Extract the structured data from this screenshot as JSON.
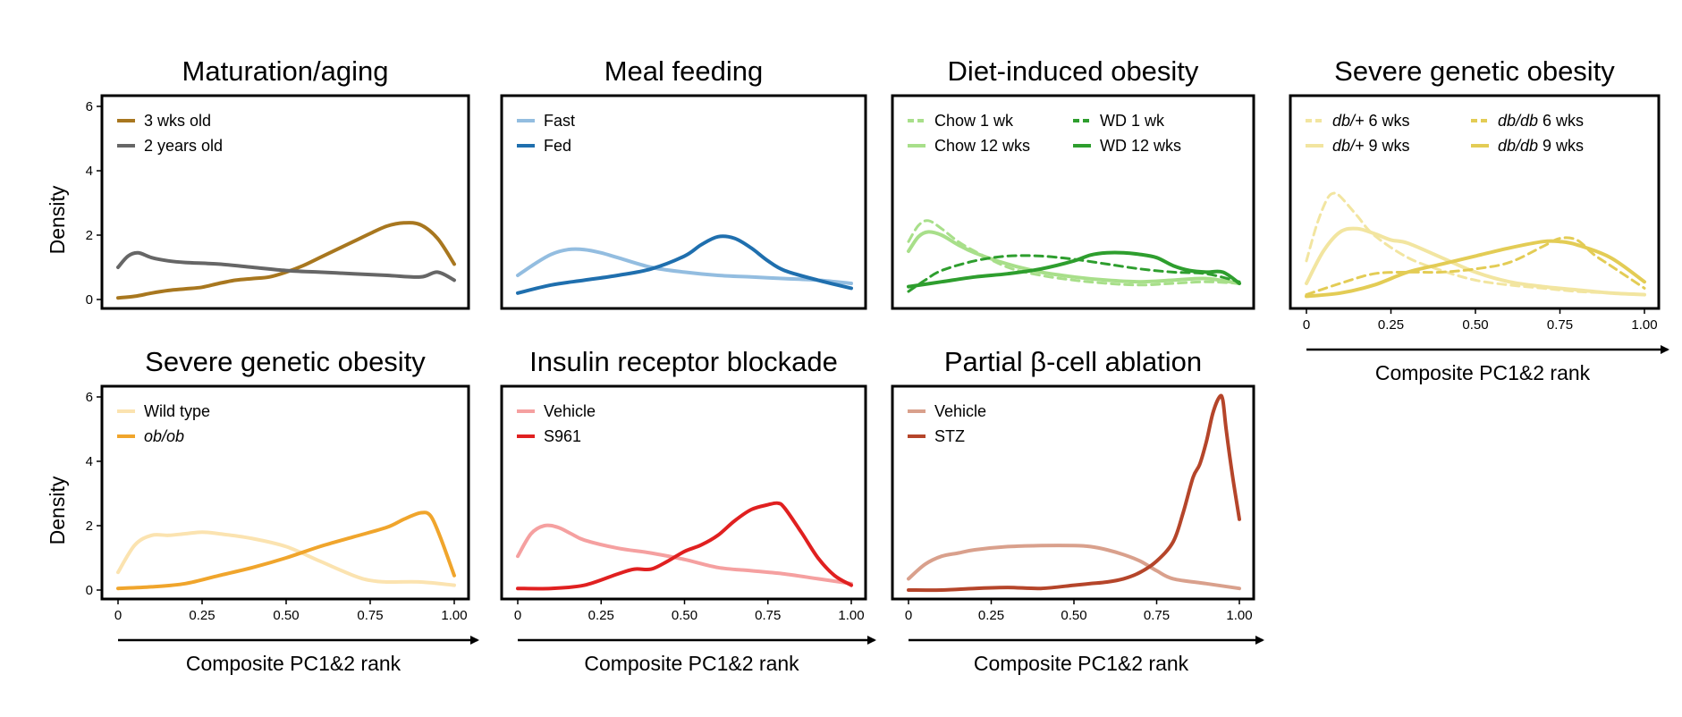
{
  "chart_data": [
    {
      "type": "line",
      "title": "Maturation/aging",
      "ylabel": "Density",
      "xlabel": "",
      "xlim": [
        0,
        1
      ],
      "ylim": [
        0,
        6
      ],
      "yticks": [
        "0",
        "2",
        "4",
        "6"
      ],
      "xticks": [],
      "legend_columns": 1,
      "series": [
        {
          "name": "3 wks old",
          "color": "#a8771f",
          "dashed": false,
          "lineWidth": 4,
          "x": [
            0,
            0.05,
            0.1,
            0.15,
            0.2,
            0.25,
            0.3,
            0.35,
            0.4,
            0.45,
            0.5,
            0.55,
            0.6,
            0.65,
            0.7,
            0.75,
            0.8,
            0.85,
            0.9,
            0.95,
            1.0
          ],
          "y": [
            0.05,
            0.1,
            0.2,
            0.28,
            0.33,
            0.38,
            0.5,
            0.6,
            0.65,
            0.7,
            0.85,
            1.05,
            1.3,
            1.55,
            1.8,
            2.05,
            2.28,
            2.38,
            2.32,
            1.9,
            1.1
          ]
        },
        {
          "name": "2 years old",
          "color": "#666666",
          "dashed": false,
          "lineWidth": 4,
          "x": [
            0,
            0.03,
            0.06,
            0.1,
            0.15,
            0.2,
            0.3,
            0.4,
            0.5,
            0.6,
            0.7,
            0.8,
            0.9,
            0.95,
            1.0
          ],
          "y": [
            1.0,
            1.35,
            1.45,
            1.3,
            1.2,
            1.15,
            1.1,
            1.0,
            0.9,
            0.85,
            0.8,
            0.75,
            0.7,
            0.85,
            0.6
          ]
        }
      ]
    },
    {
      "type": "line",
      "title": "Meal feeding",
      "ylabel": "",
      "xlabel": "",
      "xlim": [
        0,
        1
      ],
      "ylim": [
        0,
        6
      ],
      "yticks": [],
      "xticks": [],
      "legend_columns": 1,
      "series": [
        {
          "name": "Fast",
          "color": "#93bde0",
          "dashed": false,
          "lineWidth": 4,
          "x": [
            0,
            0.05,
            0.1,
            0.15,
            0.2,
            0.25,
            0.3,
            0.4,
            0.5,
            0.6,
            0.7,
            0.8,
            0.9,
            1.0
          ],
          "y": [
            0.75,
            1.1,
            1.4,
            1.55,
            1.55,
            1.45,
            1.3,
            1.0,
            0.85,
            0.75,
            0.7,
            0.65,
            0.6,
            0.5
          ]
        },
        {
          "name": "Fed",
          "color": "#1f6fae",
          "dashed": false,
          "lineWidth": 4,
          "x": [
            0,
            0.1,
            0.2,
            0.3,
            0.4,
            0.5,
            0.55,
            0.6,
            0.65,
            0.7,
            0.75,
            0.8,
            0.9,
            1.0
          ],
          "y": [
            0.2,
            0.45,
            0.6,
            0.75,
            0.95,
            1.35,
            1.7,
            1.95,
            1.9,
            1.6,
            1.2,
            0.9,
            0.6,
            0.35
          ]
        }
      ]
    },
    {
      "type": "line",
      "title": "Diet-induced obesity",
      "ylabel": "",
      "xlabel": "",
      "xlim": [
        0,
        1
      ],
      "ylim": [
        0,
        6
      ],
      "yticks": [],
      "xticks": [],
      "legend_columns": 2,
      "series": [
        {
          "name": "Chow 1 wk",
          "color": "#a8df8a",
          "dashed": true,
          "lineWidth": 3,
          "x": [
            0,
            0.03,
            0.06,
            0.1,
            0.15,
            0.2,
            0.3,
            0.4,
            0.5,
            0.6,
            0.7,
            0.8,
            0.9,
            1.0
          ],
          "y": [
            1.8,
            2.3,
            2.45,
            2.2,
            1.8,
            1.5,
            1.0,
            0.75,
            0.6,
            0.5,
            0.45,
            0.5,
            0.55,
            0.5
          ]
        },
        {
          "name": "Chow 12 wks",
          "color": "#a8df8a",
          "dashed": false,
          "lineWidth": 4,
          "x": [
            0,
            0.03,
            0.06,
            0.1,
            0.15,
            0.2,
            0.3,
            0.4,
            0.5,
            0.6,
            0.7,
            0.8,
            0.9,
            1.0
          ],
          "y": [
            1.5,
            1.95,
            2.1,
            2.0,
            1.7,
            1.45,
            1.1,
            0.85,
            0.7,
            0.6,
            0.55,
            0.6,
            0.65,
            0.5
          ]
        },
        {
          "name": "WD 1 wk",
          "color": "#2e9e2e",
          "dashed": true,
          "lineWidth": 3,
          "x": [
            0,
            0.05,
            0.1,
            0.2,
            0.3,
            0.4,
            0.5,
            0.6,
            0.7,
            0.8,
            0.9,
            1.0
          ],
          "y": [
            0.25,
            0.6,
            0.9,
            1.2,
            1.35,
            1.35,
            1.25,
            1.1,
            0.95,
            0.85,
            0.8,
            0.55
          ]
        },
        {
          "name": "WD 12 wks",
          "color": "#2e9e2e",
          "dashed": false,
          "lineWidth": 4,
          "x": [
            0,
            0.1,
            0.2,
            0.3,
            0.4,
            0.5,
            0.55,
            0.6,
            0.65,
            0.7,
            0.75,
            0.8,
            0.85,
            0.9,
            0.95,
            1.0
          ],
          "y": [
            0.4,
            0.55,
            0.7,
            0.8,
            0.95,
            1.2,
            1.38,
            1.45,
            1.45,
            1.4,
            1.3,
            1.05,
            0.9,
            0.85,
            0.85,
            0.5
          ]
        }
      ]
    },
    {
      "type": "line",
      "title": "Severe genetic obesity",
      "ylabel": "",
      "xlabel": "Composite PC1&2 rank",
      "xlim": [
        0,
        1
      ],
      "ylim": [
        0,
        6
      ],
      "yticks": [],
      "xticks": [
        "0",
        "0.25",
        "0.50",
        "0.75",
        "1.00"
      ],
      "legend_columns": 2,
      "series": [
        {
          "name": "db/+ 6 wks",
          "prefix": "db/+",
          "suffix": " 6 wks",
          "color": "#f2e5a0",
          "dashed": true,
          "lineWidth": 3,
          "x": [
            0,
            0.03,
            0.06,
            0.08,
            0.1,
            0.15,
            0.2,
            0.3,
            0.4,
            0.5,
            0.6,
            0.7,
            0.8,
            0.9,
            1.0
          ],
          "y": [
            1.2,
            2.3,
            3.1,
            3.3,
            3.2,
            2.6,
            2.0,
            1.3,
            0.9,
            0.6,
            0.45,
            0.35,
            0.25,
            0.2,
            0.15
          ]
        },
        {
          "name": "db/+ 9 wks",
          "prefix": "db/+",
          "suffix": " 9 wks",
          "color": "#f2e5a0",
          "dashed": false,
          "lineWidth": 4,
          "x": [
            0,
            0.05,
            0.1,
            0.15,
            0.2,
            0.25,
            0.3,
            0.4,
            0.5,
            0.6,
            0.7,
            0.8,
            0.9,
            1.0
          ],
          "y": [
            0.5,
            1.5,
            2.1,
            2.2,
            2.05,
            1.85,
            1.75,
            1.3,
            0.85,
            0.55,
            0.4,
            0.3,
            0.2,
            0.15
          ]
        },
        {
          "name": "db/db 6 wks",
          "prefix": "db/db",
          "suffix": " 6 wks",
          "color": "#e3cc55",
          "dashed": true,
          "lineWidth": 3,
          "x": [
            0,
            0.1,
            0.2,
            0.3,
            0.4,
            0.5,
            0.6,
            0.7,
            0.75,
            0.8,
            0.85,
            0.9,
            1.0
          ],
          "y": [
            0.15,
            0.5,
            0.8,
            0.85,
            0.85,
            0.95,
            1.15,
            1.65,
            1.9,
            1.85,
            1.4,
            1.05,
            0.35
          ]
        },
        {
          "name": "db/db 9 wks",
          "prefix": "db/db",
          "suffix": " 9 wks",
          "color": "#e3cc55",
          "dashed": false,
          "lineWidth": 4,
          "x": [
            0,
            0.1,
            0.2,
            0.3,
            0.4,
            0.5,
            0.6,
            0.7,
            0.75,
            0.8,
            0.9,
            1.0
          ],
          "y": [
            0.1,
            0.2,
            0.45,
            0.85,
            1.1,
            1.35,
            1.6,
            1.8,
            1.8,
            1.7,
            1.3,
            0.55
          ]
        }
      ]
    },
    {
      "type": "line",
      "title": "Severe genetic obesity",
      "ylabel": "Density",
      "xlabel": "Composite PC1&2 rank",
      "xlim": [
        0,
        1
      ],
      "ylim": [
        0,
        6
      ],
      "yticks": [
        "0",
        "2",
        "4",
        "6"
      ],
      "xticks": [
        "0",
        "0.25",
        "0.50",
        "0.75",
        "1.00"
      ],
      "legend_columns": 1,
      "series": [
        {
          "name": "Wild type",
          "color": "#fbe3b0",
          "dashed": false,
          "lineWidth": 4,
          "x": [
            0,
            0.05,
            0.1,
            0.15,
            0.2,
            0.25,
            0.3,
            0.4,
            0.5,
            0.6,
            0.7,
            0.75,
            0.8,
            0.9,
            1.0
          ],
          "y": [
            0.55,
            1.4,
            1.7,
            1.7,
            1.75,
            1.8,
            1.75,
            1.6,
            1.35,
            0.9,
            0.45,
            0.3,
            0.25,
            0.25,
            0.15
          ]
        },
        {
          "name": "ob/ob",
          "italic": true,
          "color": "#f0a52c",
          "dashed": false,
          "lineWidth": 4,
          "x": [
            0,
            0.1,
            0.2,
            0.3,
            0.4,
            0.5,
            0.6,
            0.7,
            0.8,
            0.85,
            0.9,
            0.93,
            0.96,
            1.0
          ],
          "y": [
            0.05,
            0.1,
            0.2,
            0.45,
            0.7,
            1.0,
            1.35,
            1.65,
            1.95,
            2.2,
            2.4,
            2.3,
            1.6,
            0.45
          ]
        }
      ]
    },
    {
      "type": "line",
      "title": "Insulin receptor blockade",
      "ylabel": "",
      "xlabel": "Composite PC1&2 rank",
      "xlim": [
        0,
        1
      ],
      "ylim": [
        0,
        6
      ],
      "yticks": [],
      "xticks": [
        "0",
        "0.25",
        "0.50",
        "0.75",
        "1.00"
      ],
      "legend_columns": 1,
      "series": [
        {
          "name": "Vehicle",
          "color": "#f5a0a0",
          "dashed": false,
          "lineWidth": 4,
          "x": [
            0,
            0.04,
            0.08,
            0.12,
            0.16,
            0.2,
            0.3,
            0.4,
            0.5,
            0.6,
            0.7,
            0.8,
            0.9,
            1.0
          ],
          "y": [
            1.05,
            1.75,
            2.0,
            1.95,
            1.75,
            1.55,
            1.3,
            1.15,
            0.95,
            0.7,
            0.6,
            0.5,
            0.35,
            0.2
          ]
        },
        {
          "name": "S961",
          "color": "#e02020",
          "dashed": false,
          "lineWidth": 4,
          "x": [
            0,
            0.1,
            0.2,
            0.3,
            0.35,
            0.4,
            0.45,
            0.5,
            0.55,
            0.6,
            0.65,
            0.7,
            0.75,
            0.78,
            0.8,
            0.85,
            0.9,
            0.95,
            1.0
          ],
          "y": [
            0.05,
            0.05,
            0.15,
            0.5,
            0.65,
            0.65,
            0.9,
            1.2,
            1.4,
            1.7,
            2.15,
            2.5,
            2.65,
            2.7,
            2.55,
            1.8,
            1.0,
            0.45,
            0.15
          ]
        }
      ]
    },
    {
      "type": "line",
      "title": "Partial β-cell ablation",
      "ylabel": "",
      "xlabel": "Composite PC1&2 rank",
      "xlim": [
        0,
        1
      ],
      "ylim": [
        0,
        6
      ],
      "yticks": [],
      "xticks": [
        "0",
        "0.25",
        "0.50",
        "0.75",
        "1.00"
      ],
      "legend_columns": 1,
      "series": [
        {
          "name": "Vehicle",
          "color": "#d9a08c",
          "dashed": false,
          "lineWidth": 4,
          "x": [
            0,
            0.05,
            0.1,
            0.15,
            0.2,
            0.3,
            0.4,
            0.5,
            0.55,
            0.6,
            0.65,
            0.7,
            0.75,
            0.8,
            0.9,
            1.0
          ],
          "y": [
            0.35,
            0.8,
            1.05,
            1.15,
            1.25,
            1.35,
            1.38,
            1.38,
            1.35,
            1.25,
            1.1,
            0.9,
            0.6,
            0.35,
            0.2,
            0.05
          ]
        },
        {
          "name": "STZ",
          "color": "#b5452a",
          "dashed": false,
          "lineWidth": 4,
          "x": [
            0,
            0.1,
            0.2,
            0.3,
            0.4,
            0.5,
            0.55,
            0.6,
            0.65,
            0.7,
            0.75,
            0.8,
            0.83,
            0.86,
            0.88,
            0.9,
            0.92,
            0.94,
            0.95,
            0.96,
            0.98,
            1.0
          ],
          "y": [
            0.0,
            0.0,
            0.05,
            0.08,
            0.05,
            0.15,
            0.2,
            0.25,
            0.35,
            0.55,
            0.9,
            1.5,
            2.4,
            3.5,
            3.9,
            4.6,
            5.5,
            6.0,
            5.9,
            5.0,
            3.5,
            2.2
          ]
        }
      ]
    }
  ]
}
